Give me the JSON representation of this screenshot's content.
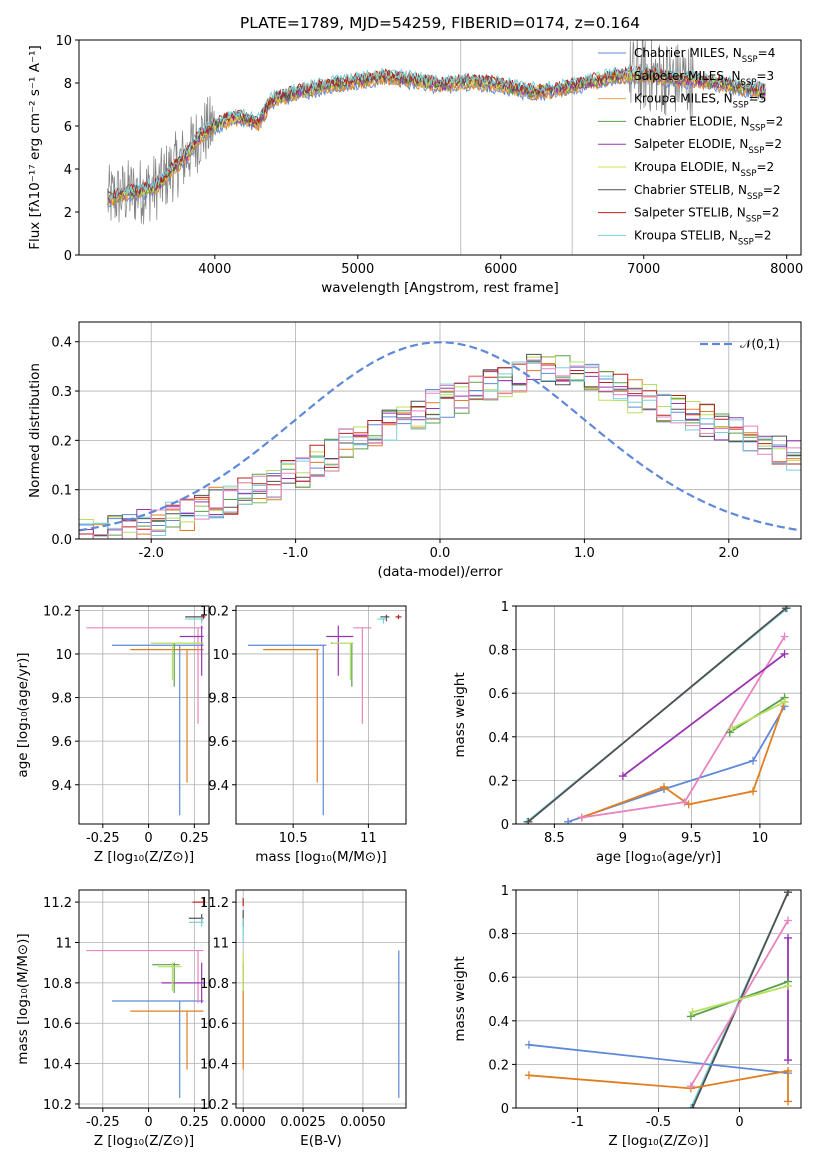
{
  "title": "PLATE=1789, MJD=54259, FIBERID=0174, z=0.164",
  "colors": {
    "data": "#808080",
    "Chabrier MILES": "#5f89d8",
    "Salpeter MILES": "#e07f22",
    "Kroupa MILES": "#f0a050",
    "Chabrier ELODIE": "#5a9f4c",
    "Salpeter ELODIE": "#9a35b0",
    "Kroupa ELODIE": "#d0e050",
    "Chabrier STELIB": "#505050",
    "Salpeter STELIB": "#b82020",
    "Kroupa STELIB": "#78d0d8",
    "pink": "#e884c0",
    "lime": "#b8e060",
    "gauss": "#5f89d8"
  },
  "chart_data": [
    {
      "id": "spectrum",
      "type": "line",
      "xlabel": "wavelength [Angstrom, rest frame]",
      "ylabel": "Flux [fλ10⁻¹⁷ erg cm⁻² s⁻¹ A⁻¹]",
      "xlim": [
        3050,
        8100
      ],
      "ylim": [
        0,
        10
      ],
      "xticks": [
        4000,
        5000,
        6000,
        7000,
        8000
      ],
      "yticks": [
        0,
        2,
        4,
        6,
        8,
        10
      ],
      "grid": false,
      "legend_position": "top-right",
      "continuum": {
        "x": [
          3250,
          3400,
          3500,
          3600,
          3700,
          3800,
          3900,
          4000,
          4100,
          4200,
          4300,
          4400,
          4600,
          4800,
          5000,
          5200,
          5400,
          5600,
          5800,
          6000,
          6200,
          6400,
          6600,
          6800,
          7000,
          7200,
          7400,
          7600,
          7850
        ],
        "y": [
          2.6,
          2.9,
          3.0,
          3.2,
          4.0,
          4.6,
          5.6,
          6.0,
          6.3,
          6.4,
          6.1,
          7.2,
          7.6,
          7.9,
          8.1,
          8.3,
          8.1,
          7.9,
          8.1,
          7.9,
          7.6,
          7.7,
          8.0,
          8.3,
          8.4,
          8.2,
          8.1,
          7.9,
          7.6
        ]
      },
      "series": [
        {
          "name": "Chabrier MILES, N_SSP=4"
        },
        {
          "name": "Salpeter MILES, N_SSP=3"
        },
        {
          "name": "Kroupa MILES, N_SSP=5"
        },
        {
          "name": "Chabrier ELODIE, N_SSP=2"
        },
        {
          "name": "Salpeter ELODIE, N_SSP=2"
        },
        {
          "name": "Kroupa ELODIE, N_SSP=2"
        },
        {
          "name": "Chabrier STELIB, N_SSP=2"
        },
        {
          "name": "Salpeter STELIB, N_SSP=2"
        },
        {
          "name": "Kroupa STELIB, N_SSP=2"
        }
      ],
      "vlines": [
        5720,
        6500
      ]
    },
    {
      "id": "residuals",
      "type": "line",
      "xlabel": "(data-model)/error",
      "ylabel": "Normed distribution",
      "xlim": [
        -2.5,
        2.5
      ],
      "ylim": [
        0,
        0.44
      ],
      "xticks": [
        -2,
        -1,
        0,
        1,
        2
      ],
      "yticks": [
        0.0,
        0.1,
        0.2,
        0.3,
        0.4
      ],
      "grid": true,
      "legend_position": "top-right",
      "legend": "𝒩(0,1)",
      "bins": {
        "start": -2.5,
        "width": 0.1
      },
      "hist_envelope": [
        0.01,
        0.015,
        0.02,
        0.025,
        0.03,
        0.035,
        0.04,
        0.05,
        0.06,
        0.07,
        0.08,
        0.09,
        0.1,
        0.11,
        0.13,
        0.14,
        0.16,
        0.17,
        0.19,
        0.2,
        0.22,
        0.23,
        0.24,
        0.25,
        0.27,
        0.28,
        0.29,
        0.3,
        0.31,
        0.32,
        0.33,
        0.34,
        0.35,
        0.34,
        0.33,
        0.32,
        0.31,
        0.3,
        0.29,
        0.28,
        0.27,
        0.26,
        0.25,
        0.24,
        0.23,
        0.22,
        0.21,
        0.2,
        0.18,
        0.17
      ]
    },
    {
      "id": "age-vs-Z",
      "type": "scatter",
      "xlabel": "Z [log₁₀(Z/Z⊙)]",
      "ylabel": "age  [log₁₀(age/yr)]",
      "xlim": [
        -0.38,
        0.33
      ],
      "ylim": [
        9.22,
        10.22
      ],
      "xticks": [
        -0.25,
        0.0,
        0.25
      ],
      "yticks": [
        9.4,
        9.6,
        9.8,
        10.0,
        10.2
      ],
      "grid": true,
      "points": [
        {
          "c": "Chabrier MILES",
          "x": 0.17,
          "y": 10.04,
          "xlo": -0.2,
          "xhi": 0.3,
          "ylo": 9.26,
          "yhi": 10.04
        },
        {
          "c": "Salpeter MILES",
          "x": 0.21,
          "y": 10.02,
          "xlo": -0.1,
          "xhi": 0.3,
          "ylo": 9.41,
          "yhi": 10.02
        },
        {
          "c": "pink",
          "x": 0.27,
          "y": 10.12,
          "xlo": -0.34,
          "xhi": 0.3,
          "ylo": 9.68,
          "yhi": 10.12
        },
        {
          "c": "Salpeter ELODIE",
          "x": 0.29,
          "y": 10.08,
          "xlo": 0.17,
          "xhi": 0.3,
          "ylo": 9.9,
          "yhi": 10.13
        },
        {
          "c": "Chabrier ELODIE",
          "x": 0.14,
          "y": 10.05,
          "xlo": 0.02,
          "xhi": 0.3,
          "ylo": 9.85,
          "yhi": 10.05
        },
        {
          "c": "lime",
          "x": 0.13,
          "y": 10.05,
          "xlo": 0.01,
          "xhi": 0.3,
          "ylo": 9.88,
          "yhi": 10.05
        },
        {
          "c": "Chabrier STELIB",
          "x": 0.29,
          "y": 10.17,
          "xlo": 0.2,
          "xhi": 0.3,
          "ylo": 10.15,
          "yhi": 10.18
        },
        {
          "c": "Salpeter STELIB",
          "x": 0.3,
          "y": 10.17,
          "xlo": 0.29,
          "xhi": 0.31,
          "ylo": 10.16,
          "yhi": 10.18
        },
        {
          "c": "Kroupa STELIB",
          "x": 0.29,
          "y": 10.16,
          "xlo": 0.2,
          "xhi": 0.3,
          "ylo": 10.14,
          "yhi": 10.17
        }
      ]
    },
    {
      "id": "age-vs-mass",
      "type": "scatter",
      "xlabel": "mass [log₁₀(M/M⊙)]",
      "ylabel": "",
      "xlim": [
        10.12,
        11.25
      ],
      "ylim": [
        9.22,
        10.22
      ],
      "xticks": [
        10.5,
        11.0
      ],
      "yticks": [
        9.4,
        9.6,
        9.8,
        10.0,
        10.2
      ],
      "grid": true,
      "points": [
        {
          "c": "Chabrier MILES",
          "x": 10.7,
          "y": 10.04,
          "xlo": 10.2,
          "xhi": 10.72,
          "ylo": 9.26,
          "yhi": 10.04
        },
        {
          "c": "Salpeter MILES",
          "x": 10.66,
          "y": 10.02,
          "xlo": 10.3,
          "xhi": 10.67,
          "ylo": 9.41,
          "yhi": 10.02
        },
        {
          "c": "pink",
          "x": 10.96,
          "y": 10.12,
          "xlo": 10.9,
          "xhi": 11.02,
          "ylo": 9.68,
          "yhi": 10.12
        },
        {
          "c": "Salpeter ELODIE",
          "x": 10.8,
          "y": 10.08,
          "xlo": 10.72,
          "xhi": 10.9,
          "ylo": 9.9,
          "yhi": 10.13
        },
        {
          "c": "Chabrier ELODIE",
          "x": 10.89,
          "y": 10.05,
          "xlo": 10.75,
          "xhi": 10.9,
          "ylo": 9.85,
          "yhi": 10.05
        },
        {
          "c": "lime",
          "x": 10.88,
          "y": 10.05,
          "xlo": 10.76,
          "xhi": 10.9,
          "ylo": 9.88,
          "yhi": 10.05
        },
        {
          "c": "Chabrier STELIB",
          "x": 11.12,
          "y": 10.17,
          "xlo": 11.08,
          "xhi": 11.14,
          "ylo": 10.15,
          "yhi": 10.18
        },
        {
          "c": "Salpeter STELIB",
          "x": 11.2,
          "y": 10.17,
          "xlo": 11.18,
          "xhi": 11.22,
          "ylo": 10.16,
          "yhi": 10.18
        },
        {
          "c": "Kroupa STELIB",
          "x": 11.1,
          "y": 10.16,
          "xlo": 11.06,
          "xhi": 11.12,
          "ylo": 10.14,
          "yhi": 10.17
        }
      ]
    },
    {
      "id": "weight-vs-age",
      "type": "line",
      "xlabel": "age  [log₁₀(age/yr)]",
      "ylabel": "mass weight",
      "xlim": [
        8.22,
        10.3
      ],
      "ylim": [
        0,
        1
      ],
      "xticks": [
        8.5,
        9.0,
        9.5,
        10.0
      ],
      "yticks": [
        0.0,
        0.2,
        0.4,
        0.6,
        0.8,
        1.0
      ],
      "grid": true,
      "series": [
        {
          "c": "Kroupa STELIB",
          "x": [
            8.3,
            10.2
          ],
          "y": [
            0.01,
            0.99
          ]
        },
        {
          "c": "Chabrier STELIB",
          "x": [
            8.31,
            10.19
          ],
          "y": [
            0.01,
            0.99
          ]
        },
        {
          "c": "Chabrier MILES",
          "x": [
            8.6,
            9.3,
            9.95,
            10.18
          ],
          "y": [
            0.01,
            0.16,
            0.29,
            0.54
          ]
        },
        {
          "c": "Salpeter MILES",
          "x": [
            8.7,
            9.3,
            9.48,
            9.95,
            10.18
          ],
          "y": [
            0.03,
            0.17,
            0.09,
            0.15,
            0.56
          ]
        },
        {
          "c": "pink",
          "x": [
            8.7,
            9.45,
            10.18
          ],
          "y": [
            0.03,
            0.1,
            0.86
          ]
        },
        {
          "c": "Salpeter ELODIE",
          "x": [
            9.0,
            10.18
          ],
          "y": [
            0.22,
            0.78
          ]
        },
        {
          "c": "Chabrier ELODIE",
          "x": [
            9.78,
            10.18
          ],
          "y": [
            0.42,
            0.58
          ]
        },
        {
          "c": "lime",
          "x": [
            9.8,
            10.18
          ],
          "y": [
            0.44,
            0.56
          ]
        }
      ]
    },
    {
      "id": "mass-vs-Z",
      "type": "scatter",
      "xlabel": "Z [log₁₀(Z/Z⊙)]",
      "ylabel": "mass [log₁₀(M/M⊙)]",
      "xlim": [
        -0.38,
        0.33
      ],
      "ylim": [
        10.18,
        11.26
      ],
      "xticks": [
        -0.25,
        0.0,
        0.25
      ],
      "yticks": [
        10.2,
        10.4,
        10.6,
        10.8,
        11.0,
        11.2
      ],
      "grid": true,
      "points": [
        {
          "c": "Chabrier MILES",
          "x": 0.17,
          "y": 10.71,
          "xlo": -0.2,
          "xhi": 0.3,
          "ylo": 10.23,
          "yhi": 10.71
        },
        {
          "c": "Salpeter MILES",
          "x": 0.21,
          "y": 10.66,
          "xlo": -0.1,
          "xhi": 0.3,
          "ylo": 10.37,
          "yhi": 10.66
        },
        {
          "c": "pink",
          "x": 0.27,
          "y": 10.96,
          "xlo": -0.34,
          "xhi": 0.3,
          "ylo": 10.7,
          "yhi": 10.96
        },
        {
          "c": "Salpeter ELODIE",
          "x": 0.29,
          "y": 10.8,
          "xlo": 0.07,
          "xhi": 0.3,
          "ylo": 10.7,
          "yhi": 10.9
        },
        {
          "c": "Chabrier ELODIE",
          "x": 0.14,
          "y": 10.89,
          "xlo": 0.02,
          "xhi": 0.17,
          "ylo": 10.75,
          "yhi": 10.9
        },
        {
          "c": "lime",
          "x": 0.13,
          "y": 10.88,
          "xlo": 0.05,
          "xhi": 0.18,
          "ylo": 10.76,
          "yhi": 10.9
        },
        {
          "c": "Chabrier STELIB",
          "x": 0.29,
          "y": 11.12,
          "xlo": 0.22,
          "xhi": 0.3,
          "ylo": 11.1,
          "yhi": 11.14
        },
        {
          "c": "Salpeter STELIB",
          "x": 0.3,
          "y": 11.2,
          "xlo": 0.24,
          "xhi": 0.31,
          "ylo": 11.18,
          "yhi": 11.22
        },
        {
          "c": "Kroupa STELIB",
          "x": 0.29,
          "y": 11.1,
          "xlo": 0.22,
          "xhi": 0.3,
          "ylo": 11.08,
          "yhi": 11.12
        }
      ]
    },
    {
      "id": "mass-vs-EBV",
      "type": "scatter",
      "xlabel": "E(B-V)",
      "ylabel": "",
      "xlim": [
        -0.0003,
        0.0068
      ],
      "ylim": [
        10.18,
        11.26
      ],
      "xticks": [
        0.0,
        0.0025,
        0.005
      ],
      "xticklabels": [
        "0.0000",
        "0.0025",
        "0.0050"
      ],
      "yticks": [
        10.2,
        10.4,
        10.6,
        10.8,
        11.0,
        11.2
      ],
      "grid": true,
      "points": [
        {
          "c": "Chabrier MILES",
          "x": 0.0065,
          "y": 10.71,
          "ylo": 10.23,
          "yhi": 10.96
        },
        {
          "c": "Salpeter MILES",
          "x": 0.0,
          "y": 10.66,
          "ylo": 10.37,
          "yhi": 10.9
        },
        {
          "c": "lime",
          "x": 0.0,
          "y": 10.88,
          "ylo": 10.76,
          "yhi": 10.95
        },
        {
          "c": "Chabrier STELIB",
          "x": 0.0,
          "y": 11.12,
          "ylo": 11.08,
          "yhi": 11.16
        },
        {
          "c": "Salpeter STELIB",
          "x": 0.0,
          "y": 11.2,
          "ylo": 11.18,
          "yhi": 11.22
        },
        {
          "c": "Kroupa STELIB",
          "x": 0.0,
          "y": 11.08,
          "ylo": 11.0,
          "yhi": 11.12
        }
      ]
    },
    {
      "id": "weight-vs-Z",
      "type": "line",
      "xlabel": "Z [log₁₀(Z/Z⊙)]",
      "ylabel": "mass weight",
      "xlim": [
        -1.38,
        0.38
      ],
      "ylim": [
        0,
        1
      ],
      "xticks": [
        -1.0,
        -0.5,
        0.0
      ],
      "yticks": [
        0.0,
        0.2,
        0.4,
        0.6,
        0.8,
        1.0
      ],
      "grid": true,
      "series": [
        {
          "c": "Kroupa STELIB",
          "x": [
            -0.3,
            0.3
          ],
          "y": [
            0.0,
            0.99
          ]
        },
        {
          "c": "Chabrier STELIB",
          "x": [
            -0.29,
            0.3
          ],
          "y": [
            0.0,
            0.99
          ]
        },
        {
          "c": "Chabrier MILES",
          "x": [
            -1.3,
            0.3
          ],
          "y": [
            0.29,
            0.16
          ]
        },
        {
          "c": "Salpeter MILES",
          "x": [
            -1.3,
            -0.3,
            0.3,
            0.3
          ],
          "y": [
            0.15,
            0.09,
            0.17,
            0.03
          ]
        },
        {
          "c": "pink",
          "x": [
            -0.3,
            0.3
          ],
          "y": [
            0.1,
            0.86
          ]
        },
        {
          "c": "Salpeter ELODIE",
          "x": [
            0.3,
            0.3
          ],
          "y": [
            0.22,
            0.78
          ]
        },
        {
          "c": "Chabrier ELODIE",
          "x": [
            -0.3,
            0.3
          ],
          "y": [
            0.42,
            0.58
          ]
        },
        {
          "c": "lime",
          "x": [
            -0.29,
            0.3
          ],
          "y": [
            0.44,
            0.56
          ]
        }
      ]
    }
  ]
}
